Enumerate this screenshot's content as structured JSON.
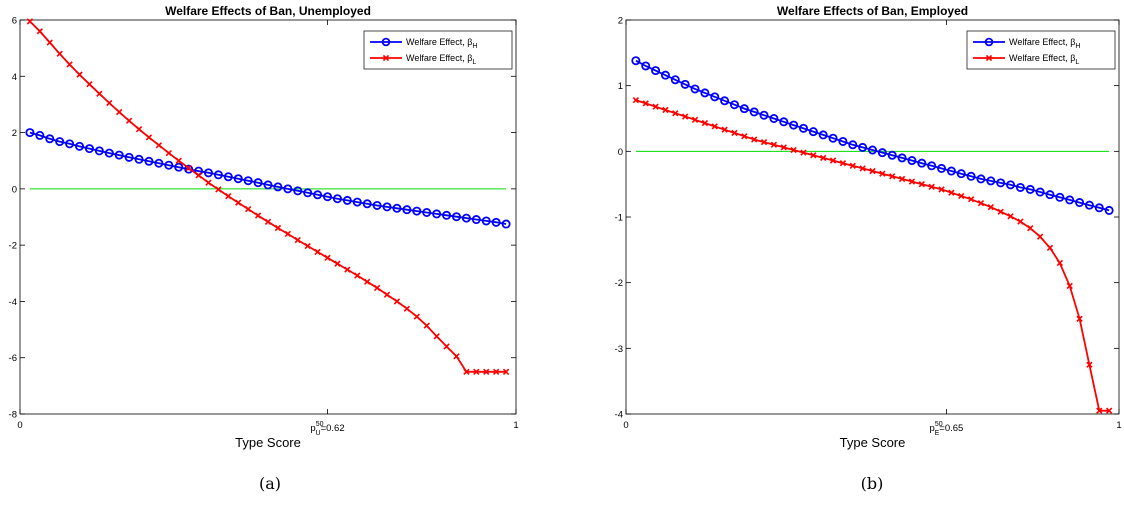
{
  "chart_data": [
    {
      "type": "line",
      "title": "Welfare Effects of Ban, Unemployed",
      "xlabel": "Type Score",
      "ylabel": "",
      "xlim": [
        0,
        1
      ],
      "ylim": [
        -8,
        6
      ],
      "xticks": [
        "0",
        "1"
      ],
      "yticks": [
        -8,
        -6,
        -4,
        -2,
        0,
        2,
        4,
        6
      ],
      "annotation": {
        "x": 0.62,
        "base": "p",
        "sup": "50",
        "sub": "U",
        "value": "=0.62"
      },
      "legend": {
        "position": "top-right"
      },
      "zero_line": {
        "y": 0,
        "color": "#00dd00"
      },
      "caption": "(a)",
      "series": [
        {
          "name": "Welfare Effect, β",
          "name_sub": "H",
          "marker": "circle",
          "color": "#0000ff",
          "x": [
            0.02,
            0.04,
            0.06,
            0.08,
            0.1,
            0.12,
            0.14,
            0.16,
            0.18,
            0.2,
            0.22,
            0.24,
            0.26,
            0.28,
            0.3,
            0.32,
            0.34,
            0.36,
            0.38,
            0.4,
            0.42,
            0.44,
            0.46,
            0.48,
            0.5,
            0.52,
            0.54,
            0.56,
            0.58,
            0.6,
            0.62,
            0.64,
            0.66,
            0.68,
            0.7,
            0.72,
            0.74,
            0.76,
            0.78,
            0.8,
            0.82,
            0.84,
            0.86,
            0.88,
            0.9,
            0.92,
            0.94,
            0.96,
            0.98
          ],
          "y": [
            2.0,
            1.9,
            1.78,
            1.68,
            1.6,
            1.51,
            1.43,
            1.35,
            1.27,
            1.2,
            1.12,
            1.05,
            0.98,
            0.91,
            0.84,
            0.77,
            0.7,
            0.63,
            0.57,
            0.5,
            0.43,
            0.36,
            0.29,
            0.22,
            0.14,
            0.07,
            0.0,
            -0.07,
            -0.14,
            -0.21,
            -0.28,
            -0.35,
            -0.41,
            -0.47,
            -0.53,
            -0.59,
            -0.64,
            -0.69,
            -0.74,
            -0.79,
            -0.84,
            -0.89,
            -0.94,
            -0.99,
            -1.04,
            -1.09,
            -1.14,
            -1.19,
            -1.25
          ]
        },
        {
          "name": "Welfare Effect, β",
          "name_sub": "L",
          "marker": "x",
          "color": "#ff0000",
          "x": [
            0.02,
            0.04,
            0.06,
            0.08,
            0.1,
            0.12,
            0.14,
            0.16,
            0.18,
            0.2,
            0.22,
            0.24,
            0.26,
            0.28,
            0.3,
            0.32,
            0.34,
            0.36,
            0.38,
            0.4,
            0.42,
            0.44,
            0.46,
            0.48,
            0.5,
            0.52,
            0.54,
            0.56,
            0.58,
            0.6,
            0.62,
            0.64,
            0.66,
            0.68,
            0.7,
            0.72,
            0.74,
            0.76,
            0.78,
            0.8,
            0.82,
            0.84,
            0.86,
            0.88,
            0.9,
            0.92,
            0.94,
            0.96,
            0.98
          ],
          "y": [
            5.95,
            5.6,
            5.2,
            4.8,
            4.42,
            4.06,
            3.72,
            3.38,
            3.05,
            2.73,
            2.42,
            2.12,
            1.83,
            1.55,
            1.27,
            1.0,
            0.74,
            0.48,
            0.22,
            -0.02,
            -0.26,
            -0.49,
            -0.72,
            -0.95,
            -1.17,
            -1.39,
            -1.6,
            -1.82,
            -2.03,
            -2.24,
            -2.45,
            -2.66,
            -2.87,
            -3.08,
            -3.3,
            -3.52,
            -3.76,
            -4.0,
            -4.26,
            -4.54,
            -4.86,
            -5.24,
            -5.6,
            -5.95,
            -6.5,
            -6.5,
            -6.5,
            -6.5,
            -6.5
          ]
        }
      ]
    },
    {
      "type": "line",
      "title": "Welfare Effects of Ban, Employed",
      "xlabel": "Type Score",
      "ylabel": "",
      "xlim": [
        0,
        1
      ],
      "ylim": [
        -4,
        2
      ],
      "xticks": [
        "0",
        "1"
      ],
      "yticks": [
        -4,
        -3,
        -2,
        -1,
        0,
        1,
        2
      ],
      "annotation": {
        "x": 0.65,
        "base": "p",
        "sup": "50",
        "sub": "E",
        "value": "=0.65"
      },
      "legend": {
        "position": "top-right"
      },
      "zero_line": {
        "y": 0,
        "color": "#00dd00"
      },
      "caption": "(b)",
      "series": [
        {
          "name": "Welfare Effect, β",
          "name_sub": "H",
          "marker": "circle",
          "color": "#0000ff",
          "x": [
            0.02,
            0.04,
            0.06,
            0.08,
            0.1,
            0.12,
            0.14,
            0.16,
            0.18,
            0.2,
            0.22,
            0.24,
            0.26,
            0.28,
            0.3,
            0.32,
            0.34,
            0.36,
            0.38,
            0.4,
            0.42,
            0.44,
            0.46,
            0.48,
            0.5,
            0.52,
            0.54,
            0.56,
            0.58,
            0.6,
            0.62,
            0.64,
            0.66,
            0.68,
            0.7,
            0.72,
            0.74,
            0.76,
            0.78,
            0.8,
            0.82,
            0.84,
            0.86,
            0.88,
            0.9,
            0.92,
            0.94,
            0.96,
            0.98
          ],
          "y": [
            1.38,
            1.3,
            1.23,
            1.16,
            1.09,
            1.02,
            0.95,
            0.89,
            0.83,
            0.77,
            0.71,
            0.65,
            0.6,
            0.55,
            0.5,
            0.45,
            0.4,
            0.35,
            0.3,
            0.25,
            0.2,
            0.15,
            0.1,
            0.06,
            0.02,
            -0.02,
            -0.06,
            -0.1,
            -0.14,
            -0.18,
            -0.22,
            -0.26,
            -0.3,
            -0.34,
            -0.38,
            -0.42,
            -0.45,
            -0.48,
            -0.51,
            -0.55,
            -0.58,
            -0.62,
            -0.66,
            -0.7,
            -0.74,
            -0.78,
            -0.82,
            -0.86,
            -0.9
          ]
        },
        {
          "name": "Welfare Effect, β",
          "name_sub": "L",
          "marker": "x",
          "color": "#ff0000",
          "x": [
            0.02,
            0.04,
            0.06,
            0.08,
            0.1,
            0.12,
            0.14,
            0.16,
            0.18,
            0.2,
            0.22,
            0.24,
            0.26,
            0.28,
            0.3,
            0.32,
            0.34,
            0.36,
            0.38,
            0.4,
            0.42,
            0.44,
            0.46,
            0.48,
            0.5,
            0.52,
            0.54,
            0.56,
            0.58,
            0.6,
            0.62,
            0.64,
            0.66,
            0.68,
            0.7,
            0.72,
            0.74,
            0.76,
            0.78,
            0.8,
            0.82,
            0.84,
            0.86,
            0.88,
            0.9,
            0.92,
            0.94,
            0.96,
            0.98
          ],
          "y": [
            0.78,
            0.73,
            0.68,
            0.63,
            0.58,
            0.53,
            0.48,
            0.43,
            0.38,
            0.33,
            0.28,
            0.23,
            0.18,
            0.14,
            0.1,
            0.06,
            0.02,
            -0.02,
            -0.06,
            -0.1,
            -0.14,
            -0.18,
            -0.22,
            -0.26,
            -0.3,
            -0.34,
            -0.38,
            -0.42,
            -0.46,
            -0.5,
            -0.54,
            -0.58,
            -0.63,
            -0.68,
            -0.73,
            -0.79,
            -0.85,
            -0.92,
            -0.99,
            -1.07,
            -1.17,
            -1.3,
            -1.47,
            -1.7,
            -2.05,
            -2.55,
            -3.25,
            -3.95,
            -3.95
          ]
        }
      ]
    }
  ]
}
